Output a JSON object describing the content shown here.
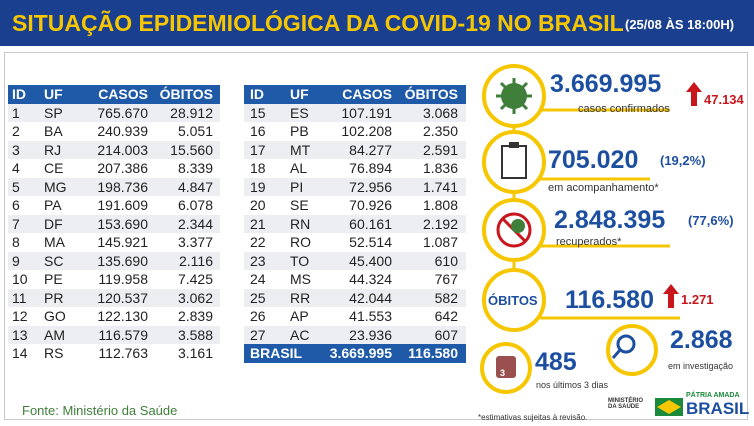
{
  "header": {
    "title": "SITUAÇÃO EPIDEMIOLÓGICA DA COVID-19 NO BRASIL",
    "date": "(25/08 ÀS 18:00H)"
  },
  "table_left": {
    "columns": [
      "ID",
      "UF",
      "CASOS",
      "ÓBITOS"
    ],
    "rows": [
      [
        "1",
        "SP",
        "765.670",
        "28.912"
      ],
      [
        "2",
        "BA",
        "240.939",
        "5.051"
      ],
      [
        "3",
        "RJ",
        "214.003",
        "15.560"
      ],
      [
        "4",
        "CE",
        "207.386",
        "8.339"
      ],
      [
        "5",
        "MG",
        "198.736",
        "4.847"
      ],
      [
        "6",
        "PA",
        "191.609",
        "6.078"
      ],
      [
        "7",
        "DF",
        "153.690",
        "2.344"
      ],
      [
        "8",
        "MA",
        "145.921",
        "3.377"
      ],
      [
        "9",
        "SC",
        "135.690",
        "2.116"
      ],
      [
        "10",
        "PE",
        "119.958",
        "7.425"
      ],
      [
        "11",
        "PR",
        "120.537",
        "3.062"
      ],
      [
        "12",
        "GO",
        "122.130",
        "2.839"
      ],
      [
        "13",
        "AM",
        "116.579",
        "3.588"
      ],
      [
        "14",
        "RS",
        "112.763",
        "3.161"
      ]
    ]
  },
  "table_right": {
    "columns": [
      "ID",
      "UF",
      "CASOS",
      "ÓBITOS"
    ],
    "rows": [
      [
        "15",
        "ES",
        "107.191",
        "3.068"
      ],
      [
        "16",
        "PB",
        "102.208",
        "2.350"
      ],
      [
        "17",
        "MT",
        "84.277",
        "2.591"
      ],
      [
        "18",
        "AL",
        "76.894",
        "1.836"
      ],
      [
        "19",
        "PI",
        "72.956",
        "1.741"
      ],
      [
        "20",
        "SE",
        "70.926",
        "1.808"
      ],
      [
        "21",
        "RN",
        "60.161",
        "2.192"
      ],
      [
        "22",
        "RO",
        "52.514",
        "1.087"
      ],
      [
        "23",
        "TO",
        "45.400",
        "610"
      ],
      [
        "24",
        "MS",
        "44.324",
        "767"
      ],
      [
        "25",
        "RR",
        "42.044",
        "582"
      ],
      [
        "26",
        "AP",
        "41.553",
        "642"
      ],
      [
        "27",
        "AC",
        "23.936",
        "607"
      ]
    ],
    "total": [
      "BRASIL",
      "3.669.995",
      "116.580"
    ]
  },
  "stats": {
    "confirmed": {
      "value": "3.669.995",
      "label": "casos confirmados",
      "delta": "47.134"
    },
    "monitoring": {
      "value": "705.020",
      "percent": "(19,2%)",
      "label": "em acompanhamento*"
    },
    "recovered": {
      "value": "2.848.395",
      "percent": "(77,6%)",
      "label": "recuperados*"
    },
    "deaths": {
      "badge": "ÓBITOS",
      "value": "116.580",
      "delta": "1.271"
    },
    "recent": {
      "value": "485",
      "label": "nos últimos 3 dias",
      "icon": "3"
    },
    "investigation": {
      "value": "2.868",
      "label": "em investigação"
    }
  },
  "source": "Fonte: Ministério da Saúde",
  "footnote": "*estimativas sujeitas à revisão.",
  "logos": {
    "ministry": "MINISTÉRIO DA SAÚDE",
    "slogan": "PÁTRIA AMADA",
    "country": "BRASIL"
  }
}
